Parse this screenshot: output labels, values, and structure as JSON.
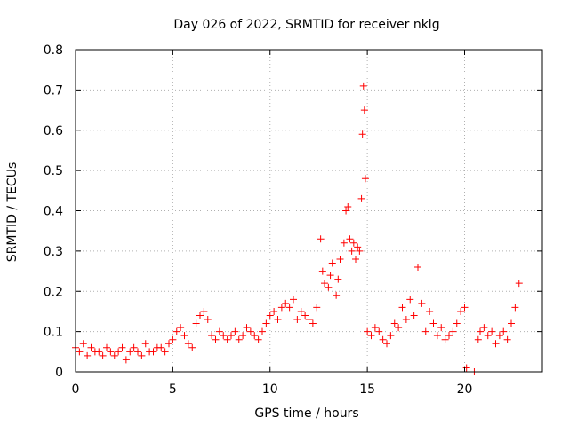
{
  "chart_data": {
    "type": "scatter",
    "title": "Day 026 of 2022, SRMTID for receiver nklg",
    "xlabel": "GPS time / hours",
    "ylabel": "SRMTID / TECUs",
    "xlim": [
      0,
      24
    ],
    "ylim": [
      0,
      0.8
    ],
    "grid": true,
    "marker": "+",
    "x_ticks": [
      0,
      5,
      10,
      15,
      20
    ],
    "x_tick_labels": [
      "0",
      "5",
      "10",
      "15",
      "20"
    ],
    "y_ticks": [
      0,
      0.1,
      0.2,
      0.3,
      0.4,
      0.5,
      0.6,
      0.7,
      0.8
    ],
    "y_tick_labels": [
      "0",
      "0.1",
      "0.2",
      "0.3",
      "0.4",
      "0.5",
      "0.6",
      "0.7",
      "0.8"
    ],
    "series": [
      {
        "name": "nklg",
        "color": "#ff0000",
        "x": [
          0.0,
          0.2,
          0.4,
          0.6,
          0.8,
          1.0,
          1.2,
          1.4,
          1.6,
          1.8,
          2.0,
          2.2,
          2.4,
          2.6,
          2.8,
          3.0,
          3.2,
          3.4,
          3.6,
          3.8,
          4.0,
          4.2,
          4.4,
          4.6,
          4.8,
          5.0,
          5.2,
          5.4,
          5.6,
          5.8,
          6.0,
          6.2,
          6.4,
          6.6,
          6.8,
          7.0,
          7.2,
          7.4,
          7.6,
          7.8,
          8.0,
          8.2,
          8.4,
          8.6,
          8.8,
          9.0,
          9.2,
          9.4,
          9.6,
          9.8,
          10.0,
          10.2,
          10.4,
          10.6,
          10.8,
          11.0,
          11.2,
          11.4,
          11.6,
          11.8,
          12.0,
          12.2,
          12.4,
          12.6,
          12.7,
          12.8,
          13.0,
          13.1,
          13.2,
          13.4,
          13.5,
          13.6,
          13.8,
          13.9,
          14.0,
          14.1,
          14.2,
          14.3,
          14.4,
          14.5,
          14.6,
          14.7,
          14.75,
          14.8,
          14.85,
          14.9,
          15.0,
          15.2,
          15.4,
          15.6,
          15.8,
          16.0,
          16.2,
          16.4,
          16.6,
          16.8,
          17.0,
          17.2,
          17.4,
          17.6,
          17.8,
          18.0,
          18.2,
          18.4,
          18.6,
          18.8,
          19.0,
          19.2,
          19.4,
          19.6,
          19.8,
          20.0,
          20.1,
          20.5,
          20.7,
          20.8,
          21.0,
          21.2,
          21.4,
          21.6,
          21.8,
          22.0,
          22.2,
          22.4,
          22.6,
          22.8
        ],
        "y": [
          0.06,
          0.05,
          0.07,
          0.04,
          0.06,
          0.05,
          0.05,
          0.04,
          0.06,
          0.05,
          0.04,
          0.05,
          0.06,
          0.03,
          0.05,
          0.06,
          0.05,
          0.04,
          0.07,
          0.05,
          0.05,
          0.06,
          0.06,
          0.05,
          0.07,
          0.08,
          0.1,
          0.11,
          0.09,
          0.07,
          0.06,
          0.12,
          0.14,
          0.15,
          0.13,
          0.09,
          0.08,
          0.1,
          0.09,
          0.08,
          0.09,
          0.1,
          0.08,
          0.09,
          0.11,
          0.1,
          0.09,
          0.08,
          0.1,
          0.12,
          0.14,
          0.15,
          0.13,
          0.16,
          0.17,
          0.16,
          0.18,
          0.13,
          0.15,
          0.14,
          0.13,
          0.12,
          0.16,
          0.33,
          0.25,
          0.22,
          0.21,
          0.24,
          0.27,
          0.19,
          0.23,
          0.28,
          0.32,
          0.4,
          0.41,
          0.33,
          0.3,
          0.32,
          0.28,
          0.31,
          0.3,
          0.43,
          0.59,
          0.71,
          0.65,
          0.48,
          0.1,
          0.09,
          0.11,
          0.1,
          0.08,
          0.07,
          0.09,
          0.12,
          0.11,
          0.16,
          0.13,
          0.18,
          0.14,
          0.26,
          0.17,
          0.1,
          0.15,
          0.12,
          0.09,
          0.11,
          0.08,
          0.09,
          0.1,
          0.12,
          0.15,
          0.16,
          0.01,
          0.0,
          0.08,
          0.1,
          0.11,
          0.09,
          0.1,
          0.07,
          0.09,
          0.1,
          0.08,
          0.12,
          0.16,
          0.22
        ]
      }
    ]
  }
}
